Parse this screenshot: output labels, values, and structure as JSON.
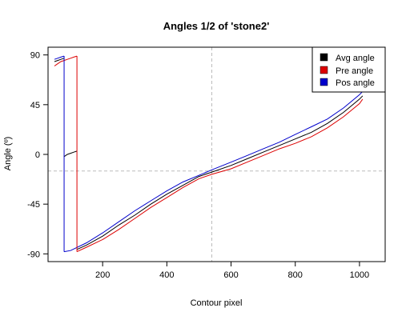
{
  "chart_data": {
    "type": "line",
    "title": "Angles 1/2 of 'stone2'",
    "xlabel": "Contour pixel",
    "ylabel": "Angle (º)",
    "xlim": [
      30,
      1080
    ],
    "ylim": [
      -97,
      97
    ],
    "x_ticks": [
      200,
      400,
      600,
      800,
      1000
    ],
    "x_tick_labels": [
      "200",
      "400",
      "600",
      "800",
      "1000"
    ],
    "y_ticks": [
      90,
      45,
      0,
      -45,
      -90
    ],
    "y_tick_labels": [
      "90",
      "45",
      "0",
      "-45",
      "-90"
    ],
    "vline": 540,
    "hline": -15,
    "legend_position": "top-right",
    "colors": {
      "avg": "#000000",
      "pre": "#dd0000",
      "pos": "#0000cc",
      "ref": "#bbbbbb"
    },
    "series": [
      {
        "name": "Avg angle",
        "key": "avg",
        "segments": [
          [
            [
              50,
              84
            ],
            [
              60,
              85
            ],
            [
              70,
              86
            ],
            [
              80,
              87
            ]
          ],
          [
            [
              80,
              -2
            ],
            [
              90,
              0
            ],
            [
              100,
              1
            ],
            [
              110,
              2
            ],
            [
              120,
              3
            ]
          ],
          [
            [
              120,
              -86
            ],
            [
              150,
              -82
            ],
            [
              200,
              -74
            ],
            [
              250,
              -64
            ],
            [
              300,
              -55
            ],
            [
              350,
              -45
            ],
            [
              400,
              -36
            ],
            [
              450,
              -28
            ],
            [
              500,
              -20
            ],
            [
              540,
              -16
            ],
            [
              600,
              -10
            ],
            [
              650,
              -4
            ],
            [
              700,
              2
            ],
            [
              750,
              8
            ],
            [
              800,
              14
            ],
            [
              850,
              20
            ],
            [
              900,
              28
            ],
            [
              950,
              38
            ],
            [
              1000,
              50
            ],
            [
              1010,
              53
            ]
          ]
        ]
      },
      {
        "name": "Pre angle",
        "key": "pre",
        "segments": [
          [
            [
              50,
              80
            ],
            [
              60,
              82
            ],
            [
              70,
              84
            ],
            [
              80,
              85
            ],
            [
              90,
              86
            ],
            [
              100,
              87
            ],
            [
              110,
              88
            ],
            [
              120,
              89
            ]
          ],
          [
            [
              120,
              -88
            ],
            [
              150,
              -84
            ],
            [
              200,
              -77
            ],
            [
              250,
              -68
            ],
            [
              300,
              -58
            ],
            [
              350,
              -48
            ],
            [
              400,
              -39
            ],
            [
              450,
              -30
            ],
            [
              500,
              -22
            ],
            [
              540,
              -18
            ],
            [
              600,
              -13
            ],
            [
              650,
              -7
            ],
            [
              700,
              -1
            ],
            [
              750,
              5
            ],
            [
              800,
              10
            ],
            [
              850,
              16
            ],
            [
              900,
              24
            ],
            [
              950,
              34
            ],
            [
              1000,
              46
            ],
            [
              1010,
              50
            ]
          ]
        ]
      },
      {
        "name": "Pos angle",
        "key": "pos",
        "segments": [
          [
            [
              50,
              86
            ],
            [
              60,
              87
            ],
            [
              70,
              88
            ],
            [
              80,
              89
            ]
          ],
          [
            [
              80,
              -88
            ],
            [
              100,
              -87
            ],
            [
              150,
              -80
            ],
            [
              200,
              -71
            ],
            [
              250,
              -61
            ],
            [
              300,
              -51
            ],
            [
              350,
              -42
            ],
            [
              400,
              -33
            ],
            [
              450,
              -25
            ],
            [
              500,
              -19
            ],
            [
              540,
              -14
            ],
            [
              600,
              -7
            ],
            [
              650,
              -1
            ],
            [
              700,
              5
            ],
            [
              750,
              11
            ],
            [
              800,
              18
            ],
            [
              850,
              25
            ],
            [
              900,
              32
            ],
            [
              950,
              42
            ],
            [
              1000,
              54
            ],
            [
              1010,
              57
            ]
          ]
        ]
      }
    ],
    "risers": [
      {
        "key": "pos",
        "x": 80,
        "y1": 89,
        "y2": -88
      },
      {
        "key": "pre",
        "x": 120,
        "y1": 89,
        "y2": -88
      }
    ]
  }
}
